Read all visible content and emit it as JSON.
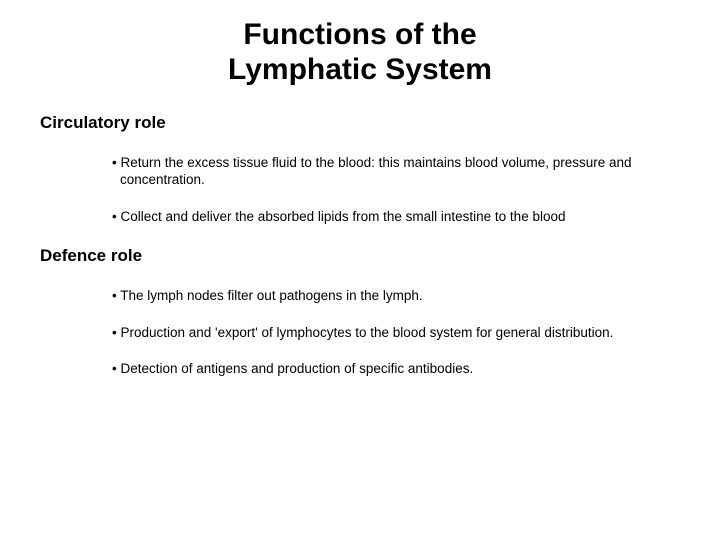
{
  "title_line1": "Functions of the",
  "title_line2": "Lymphatic System",
  "sections": [
    {
      "heading": "Circulatory role",
      "bullets": [
        "Return the excess tissue fluid to the blood: this maintains blood volume, pressure and concentration.",
        "Collect and deliver the absorbed lipids from the small intestine to the blood"
      ]
    },
    {
      "heading": "Defence role",
      "bullets": [
        "The lymph nodes filter out pathogens in the lymph.",
        "Production and 'export' of lymphocytes to the blood system for general distribution.",
        "Detection of antigens and production of specific antibodies."
      ]
    }
  ]
}
